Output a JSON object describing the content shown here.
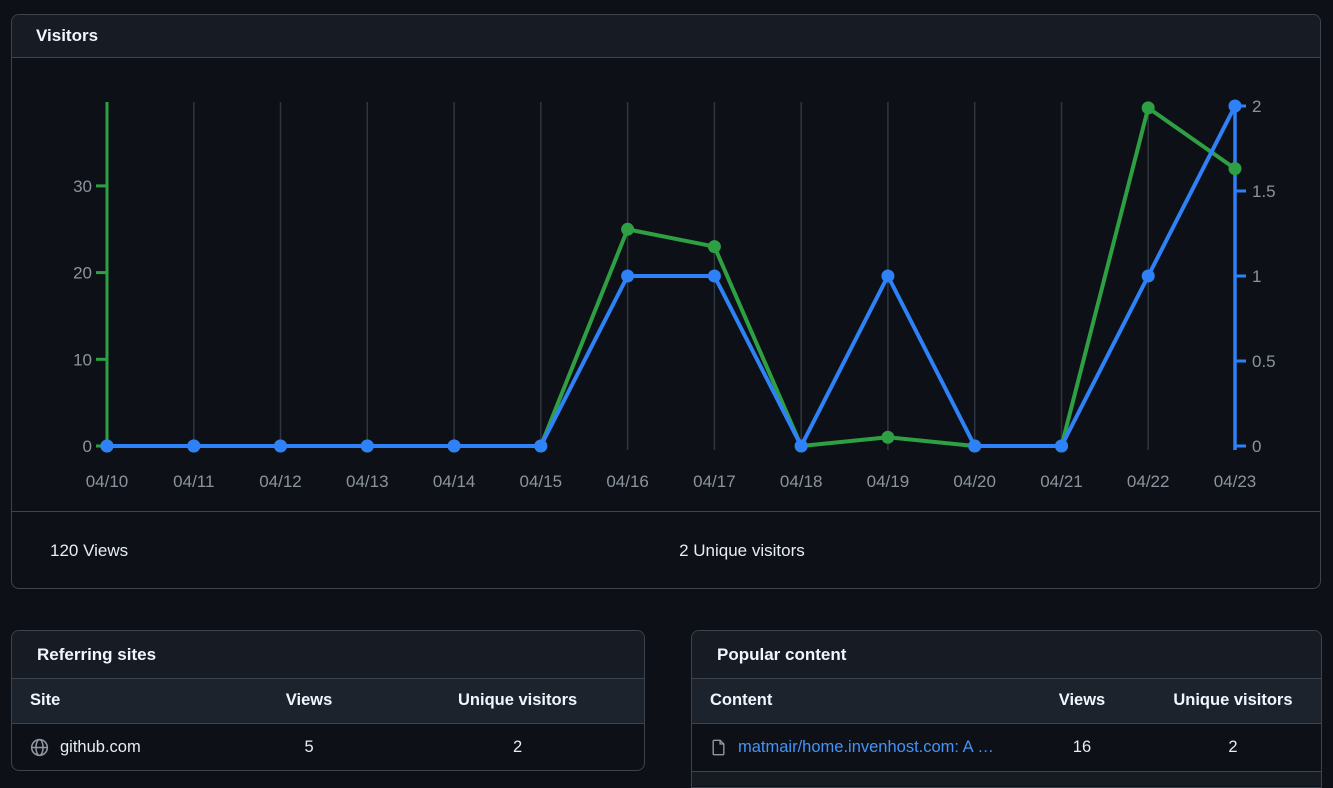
{
  "visitors_panel": {
    "title": "Visitors",
    "views_total": "120 Views",
    "unique_total": "2 Unique visitors"
  },
  "chart_data": {
    "type": "line",
    "title": "Visitors",
    "x": [
      "04/10",
      "04/11",
      "04/12",
      "04/13",
      "04/14",
      "04/15",
      "04/16",
      "04/17",
      "04/18",
      "04/19",
      "04/20",
      "04/21",
      "04/22",
      "04/23"
    ],
    "series": [
      {
        "name": "Views",
        "axis": "left",
        "color": "#2ea043",
        "values": [
          0,
          0,
          0,
          0,
          0,
          0,
          25,
          23,
          0,
          1,
          0,
          0,
          39,
          32
        ]
      },
      {
        "name": "Unique visitors",
        "axis": "right",
        "color": "#2f81f7",
        "values": [
          0,
          0,
          0,
          0,
          0,
          0,
          1,
          1,
          0,
          1,
          0,
          0,
          1,
          2
        ]
      }
    ],
    "left_axis": {
      "ticks": [
        0,
        10,
        20,
        30
      ],
      "range": [
        0,
        39.2
      ],
      "color": "#2ea043"
    },
    "right_axis": {
      "ticks": [
        0,
        0.5,
        1,
        1.5,
        2
      ],
      "range": [
        0,
        2
      ],
      "color": "#2f81f7"
    },
    "grid": "vertical",
    "gridline_color": "#30363d",
    "tick_label_color": "#8b949e",
    "legend_position": "none"
  },
  "referring_sites": {
    "title": "Referring sites",
    "columns": [
      "Site",
      "Views",
      "Unique visitors"
    ],
    "rows": [
      {
        "icon": "globe-icon",
        "site": "github.com",
        "views": "5",
        "unique": "2"
      }
    ]
  },
  "popular_content": {
    "title": "Popular content",
    "columns": [
      "Content",
      "Views",
      "Unique visitors"
    ],
    "rows": [
      {
        "icon": "file-icon",
        "content": "matmair/home.invenhost.com: A …",
        "views": "16",
        "unique": "2"
      }
    ]
  },
  "colors": {
    "page_bg": "#0d1117",
    "panel_border": "#3d444d",
    "panel_header_bg": "#171c24",
    "table_head_bg": "#1d232d",
    "title_text": "#f0f6fc",
    "body_text": "#e6edf3",
    "muted_text": "#8b949e",
    "link_blue": "#4493f8",
    "views_green": "#2ea043",
    "unique_blue": "#2f81f7"
  }
}
